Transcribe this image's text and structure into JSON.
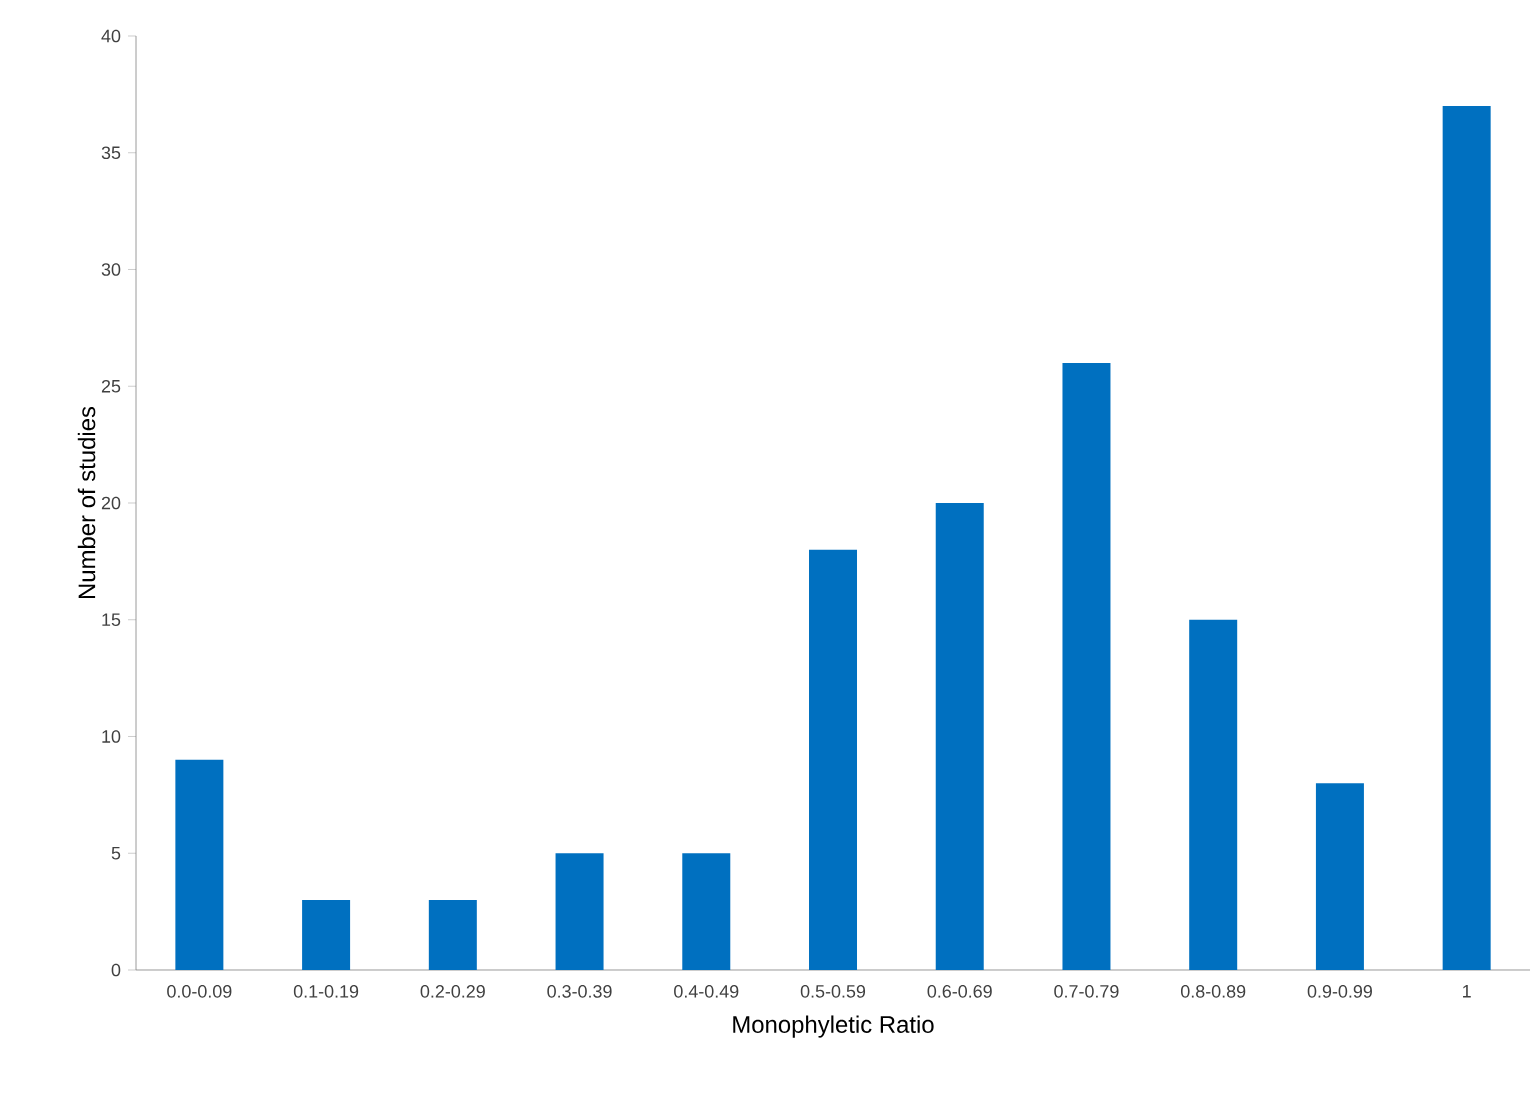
{
  "chart_data": {
    "type": "bar",
    "xlabel": "Monophyletic Ratio",
    "ylabel": "Number of studies",
    "categories": [
      "0.0-0.09",
      "0.1-0.19",
      "0.2-0.29",
      "0.3-0.39",
      "0.4-0.49",
      "0.5-0.59",
      "0.6-0.69",
      "0.7-0.79",
      "0.8-0.89",
      "0.9-0.99",
      "1"
    ],
    "values": [
      9,
      3,
      3,
      5,
      5,
      18,
      20,
      26,
      15,
      8,
      37
    ],
    "color": "#0070c0",
    "ylim": [
      0,
      40
    ],
    "yticks": [
      0,
      5,
      10,
      15,
      20,
      25,
      30,
      35,
      40
    ],
    "grid": false
  }
}
